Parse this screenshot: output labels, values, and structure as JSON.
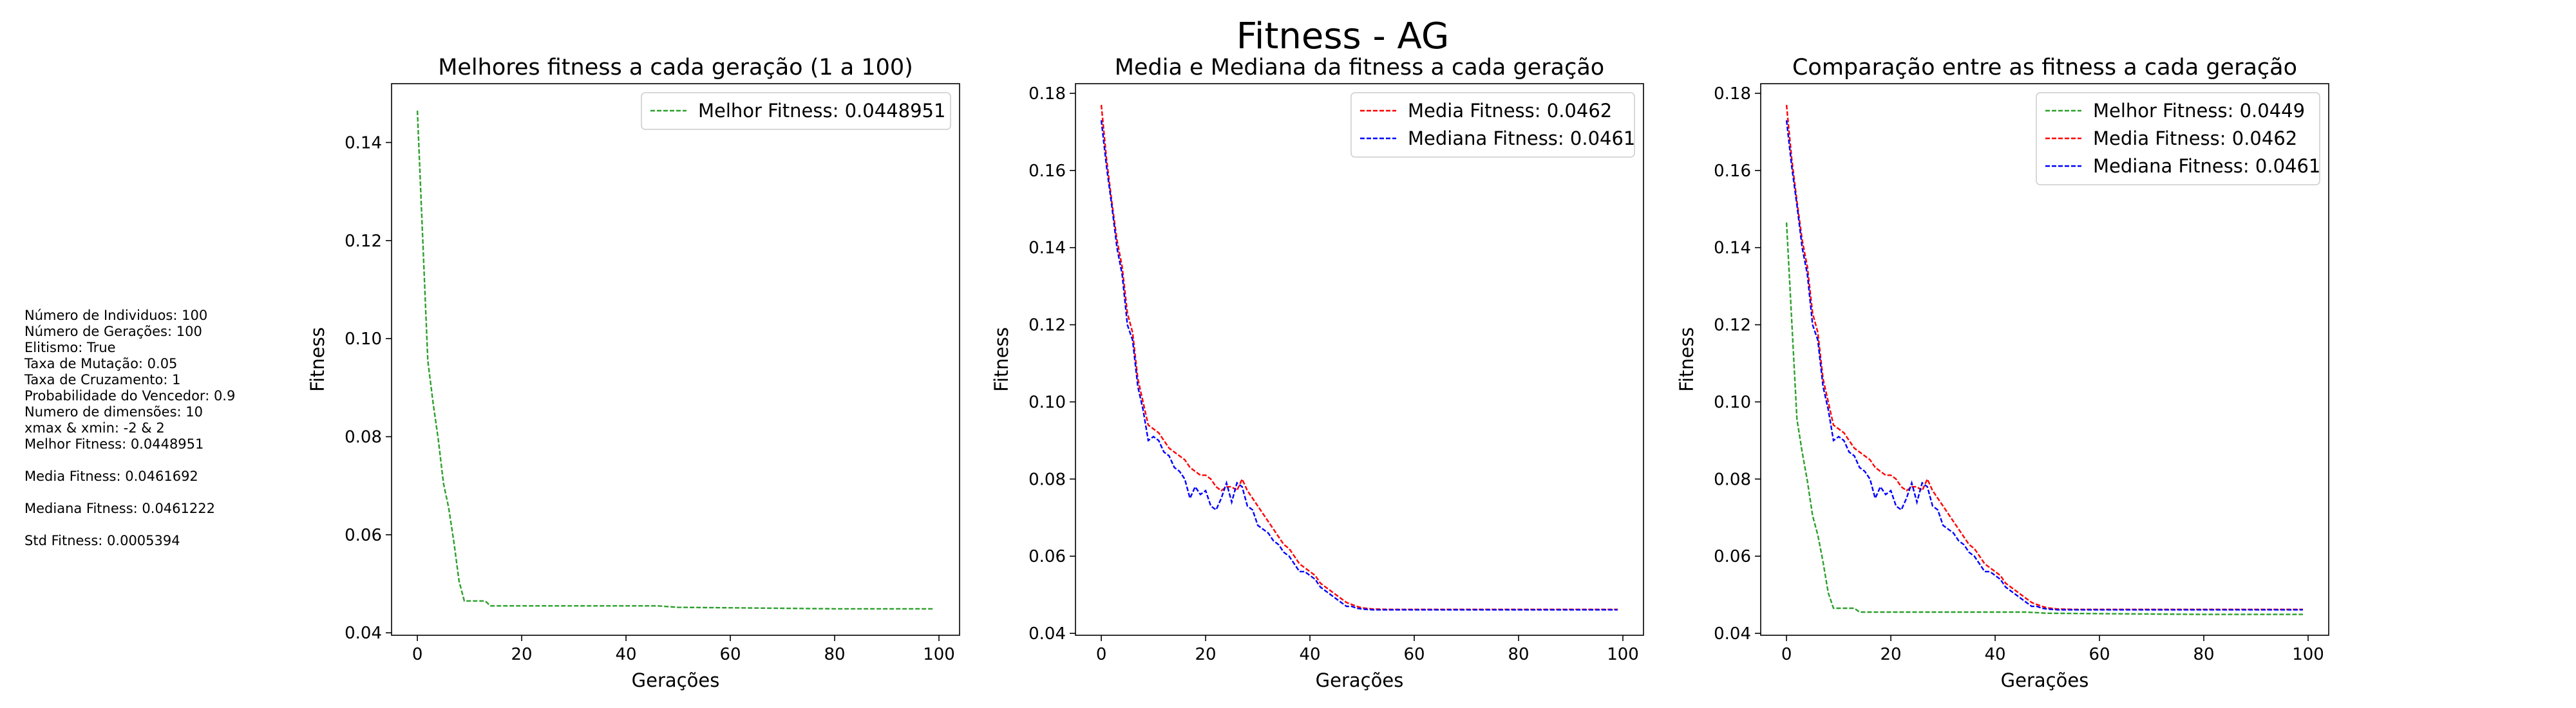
{
  "figure_title": "Fitness - AG",
  "colors": {
    "melhor": "#2ca02c",
    "media": "#ff0000",
    "mediana": "#0000ff",
    "axes": "#000000"
  },
  "params": [
    "Número de Individuos: 100",
    "Número de Gerações: 100",
    "Elitismo: True",
    "Taxa de Mutação: 0.05",
    "Taxa de Cruzamento: 1",
    "Probabilidade do Vencedor: 0.9",
    "Numero de dimensões: 10",
    "xmax & xmin: -2 & 2",
    "Melhor Fitness: 0.0448951",
    "",
    "Media Fitness: 0.0461692",
    "",
    "Mediana Fitness: 0.0461222",
    "",
    "Std Fitness: 0.0005394"
  ],
  "chart_data": [
    {
      "type": "line",
      "title": "Melhores fitness a cada geração (1 a 100)",
      "xlabel": "Gerações",
      "ylabel": "Fitness",
      "xlim": [
        -4.95,
        103.95
      ],
      "ylim": [
        0.0395,
        0.152
      ],
      "xticks": [
        0,
        20,
        40,
        60,
        80,
        100
      ],
      "yticks": [
        0.04,
        0.06,
        0.08,
        0.1,
        0.12,
        0.14
      ],
      "ytick_labels": [
        "0.04",
        "0.06",
        "0.08",
        "0.10",
        "0.12",
        "0.14"
      ],
      "legend_position": "upper-right",
      "grid": false,
      "series": [
        {
          "name": "Melhor Fitness: 0.0448951",
          "color_key": "melhor",
          "x": [
            0,
            1,
            2,
            3,
            4,
            5,
            6,
            7,
            8,
            9,
            10,
            11,
            12,
            13,
            14,
            15,
            20,
            30,
            40,
            46,
            50,
            60,
            70,
            80,
            90,
            99
          ],
          "y": [
            0.1465,
            0.121,
            0.0955,
            0.087,
            0.0795,
            0.0705,
            0.0655,
            0.0585,
            0.0505,
            0.0465,
            0.0465,
            0.0465,
            0.0465,
            0.0465,
            0.0455,
            0.0455,
            0.0455,
            0.0455,
            0.0455,
            0.0455,
            0.0452,
            0.0451,
            0.045,
            0.0449,
            0.0449,
            0.0449
          ]
        }
      ]
    },
    {
      "type": "line",
      "title": "Media e Mediana da fitness a cada geração",
      "xlabel": "Gerações",
      "ylabel": "Fitness",
      "xlim": [
        -4.95,
        103.95
      ],
      "ylim": [
        0.0395,
        0.1825
      ],
      "xticks": [
        0,
        20,
        40,
        60,
        80,
        100
      ],
      "yticks": [
        0.04,
        0.06,
        0.08,
        0.1,
        0.12,
        0.14,
        0.16,
        0.18
      ],
      "ytick_labels": [
        "0.04",
        "0.06",
        "0.08",
        "0.10",
        "0.12",
        "0.14",
        "0.16",
        "0.18"
      ],
      "legend_position": "upper-right",
      "grid": false,
      "series": [
        {
          "name": "Media Fitness: 0.0462",
          "color_key": "media",
          "x": [
            0,
            1,
            2,
            3,
            4,
            5,
            6,
            7,
            8,
            9,
            10,
            11,
            12,
            13,
            14,
            15,
            16,
            17,
            18,
            19,
            20,
            21,
            22,
            23,
            24,
            25,
            26,
            27,
            28,
            29,
            30,
            31,
            32,
            33,
            34,
            35,
            36,
            37,
            38,
            39,
            40,
            41,
            42,
            43,
            44,
            45,
            46,
            47,
            48,
            49,
            50,
            52,
            55,
            60,
            70,
            80,
            90,
            99
          ],
          "y": [
            0.177,
            0.163,
            0.152,
            0.142,
            0.135,
            0.123,
            0.118,
            0.106,
            0.1,
            0.094,
            0.093,
            0.092,
            0.09,
            0.088,
            0.087,
            0.086,
            0.085,
            0.083,
            0.082,
            0.081,
            0.081,
            0.08,
            0.078,
            0.077,
            0.078,
            0.078,
            0.077,
            0.08,
            0.077,
            0.075,
            0.073,
            0.071,
            0.069,
            0.067,
            0.065,
            0.063,
            0.062,
            0.06,
            0.058,
            0.057,
            0.056,
            0.055,
            0.053,
            0.052,
            0.051,
            0.05,
            0.049,
            0.048,
            0.0475,
            0.047,
            0.0466,
            0.0463,
            0.0462,
            0.0462,
            0.0462,
            0.0462,
            0.0462,
            0.0462
          ]
        },
        {
          "name": "Mediana Fitness: 0.0461",
          "color_key": "mediana",
          "x": [
            0,
            1,
            2,
            3,
            4,
            5,
            6,
            7,
            8,
            9,
            10,
            11,
            12,
            13,
            14,
            15,
            16,
            17,
            18,
            19,
            20,
            21,
            22,
            23,
            24,
            25,
            26,
            27,
            28,
            29,
            30,
            31,
            32,
            33,
            34,
            35,
            36,
            37,
            38,
            39,
            40,
            41,
            42,
            43,
            44,
            45,
            46,
            47,
            48,
            49,
            50,
            52,
            55,
            60,
            70,
            80,
            90,
            99
          ],
          "y": [
            0.173,
            0.161,
            0.151,
            0.14,
            0.133,
            0.12,
            0.116,
            0.104,
            0.098,
            0.09,
            0.091,
            0.09,
            0.087,
            0.086,
            0.083,
            0.082,
            0.08,
            0.075,
            0.078,
            0.076,
            0.077,
            0.073,
            0.072,
            0.075,
            0.079,
            0.074,
            0.079,
            0.078,
            0.073,
            0.072,
            0.068,
            0.067,
            0.066,
            0.064,
            0.063,
            0.061,
            0.06,
            0.058,
            0.056,
            0.056,
            0.055,
            0.054,
            0.052,
            0.051,
            0.05,
            0.049,
            0.048,
            0.047,
            0.047,
            0.0465,
            0.0463,
            0.0461,
            0.0461,
            0.0461,
            0.0461,
            0.0461,
            0.0461,
            0.0461
          ]
        }
      ]
    },
    {
      "type": "line",
      "title": "Comparação entre as fitness a cada geração",
      "xlabel": "Gerações",
      "ylabel": "Fitness",
      "xlim": [
        -4.95,
        103.95
      ],
      "ylim": [
        0.0395,
        0.1825
      ],
      "xticks": [
        0,
        20,
        40,
        60,
        80,
        100
      ],
      "yticks": [
        0.04,
        0.06,
        0.08,
        0.1,
        0.12,
        0.14,
        0.16,
        0.18
      ],
      "ytick_labels": [
        "0.04",
        "0.06",
        "0.08",
        "0.10",
        "0.12",
        "0.14",
        "0.16",
        "0.18"
      ],
      "legend_position": "upper-right",
      "grid": false,
      "series": [
        {
          "name": "Melhor Fitness: 0.0449",
          "color_key": "melhor",
          "x": [
            0,
            1,
            2,
            3,
            4,
            5,
            6,
            7,
            8,
            9,
            10,
            11,
            12,
            13,
            14,
            15,
            20,
            30,
            40,
            46,
            50,
            60,
            70,
            80,
            90,
            99
          ],
          "y": [
            0.1465,
            0.121,
            0.0955,
            0.087,
            0.0795,
            0.0705,
            0.0655,
            0.0585,
            0.0505,
            0.0465,
            0.0465,
            0.0465,
            0.0465,
            0.0465,
            0.0455,
            0.0455,
            0.0455,
            0.0455,
            0.0455,
            0.0455,
            0.0452,
            0.0451,
            0.045,
            0.0449,
            0.0449,
            0.0449
          ]
        },
        {
          "name": "Media Fitness: 0.0462",
          "color_key": "media",
          "x": [
            0,
            1,
            2,
            3,
            4,
            5,
            6,
            7,
            8,
            9,
            10,
            11,
            12,
            13,
            14,
            15,
            16,
            17,
            18,
            19,
            20,
            21,
            22,
            23,
            24,
            25,
            26,
            27,
            28,
            29,
            30,
            31,
            32,
            33,
            34,
            35,
            36,
            37,
            38,
            39,
            40,
            41,
            42,
            43,
            44,
            45,
            46,
            47,
            48,
            49,
            50,
            52,
            55,
            60,
            70,
            80,
            90,
            99
          ],
          "y": [
            0.177,
            0.163,
            0.152,
            0.142,
            0.135,
            0.123,
            0.118,
            0.106,
            0.1,
            0.094,
            0.093,
            0.092,
            0.09,
            0.088,
            0.087,
            0.086,
            0.085,
            0.083,
            0.082,
            0.081,
            0.081,
            0.08,
            0.078,
            0.077,
            0.078,
            0.078,
            0.077,
            0.08,
            0.077,
            0.075,
            0.073,
            0.071,
            0.069,
            0.067,
            0.065,
            0.063,
            0.062,
            0.06,
            0.058,
            0.057,
            0.056,
            0.055,
            0.053,
            0.052,
            0.051,
            0.05,
            0.049,
            0.048,
            0.0475,
            0.047,
            0.0466,
            0.0463,
            0.0462,
            0.0462,
            0.0462,
            0.0462,
            0.0462,
            0.0462
          ]
        },
        {
          "name": "Mediana Fitness: 0.0461",
          "color_key": "mediana",
          "x": [
            0,
            1,
            2,
            3,
            4,
            5,
            6,
            7,
            8,
            9,
            10,
            11,
            12,
            13,
            14,
            15,
            16,
            17,
            18,
            19,
            20,
            21,
            22,
            23,
            24,
            25,
            26,
            27,
            28,
            29,
            30,
            31,
            32,
            33,
            34,
            35,
            36,
            37,
            38,
            39,
            40,
            41,
            42,
            43,
            44,
            45,
            46,
            47,
            48,
            49,
            50,
            52,
            55,
            60,
            70,
            80,
            90,
            99
          ],
          "y": [
            0.173,
            0.161,
            0.151,
            0.14,
            0.133,
            0.12,
            0.116,
            0.104,
            0.098,
            0.09,
            0.091,
            0.09,
            0.087,
            0.086,
            0.083,
            0.082,
            0.08,
            0.075,
            0.078,
            0.076,
            0.077,
            0.073,
            0.072,
            0.075,
            0.079,
            0.074,
            0.079,
            0.078,
            0.073,
            0.072,
            0.068,
            0.067,
            0.066,
            0.064,
            0.063,
            0.061,
            0.06,
            0.058,
            0.056,
            0.056,
            0.055,
            0.054,
            0.052,
            0.051,
            0.05,
            0.049,
            0.048,
            0.047,
            0.047,
            0.0465,
            0.0463,
            0.0461,
            0.0461,
            0.0461,
            0.0461,
            0.0461,
            0.0461,
            0.0461
          ]
        }
      ]
    }
  ]
}
